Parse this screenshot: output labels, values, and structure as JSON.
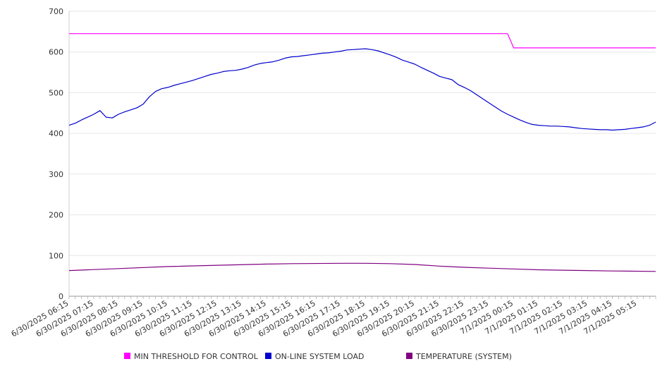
{
  "chart_data": {
    "type": "line",
    "title": "",
    "xlabel": "",
    "ylabel": "",
    "ylim": [
      0,
      700
    ],
    "yticks": [
      0,
      100,
      200,
      300,
      400,
      500,
      600,
      700
    ],
    "grid": true,
    "legend_position": "bottom",
    "x_tick_labels": [
      "6/30/2025 06:15",
      "6/30/2025 07:15",
      "6/30/2025 08:15",
      "6/30/2025 09:15",
      "6/30/2025 10:15",
      "6/30/2025 11:15",
      "6/30/2025 12:15",
      "6/30/2025 13:15",
      "6/30/2025 14:15",
      "6/30/2025 15:15",
      "6/30/2025 16:15",
      "6/30/2025 17:15",
      "6/30/2025 18:15",
      "6/30/2025 19:15",
      "6/30/2025 20:15",
      "6/30/2025 21:15",
      "6/30/2025 22:15",
      "6/30/2025 23:15",
      "7/1/2025 00:15",
      "7/1/2025 01:15",
      "7/1/2025 02:15",
      "7/1/2025 03:15",
      "7/1/2025 04:15",
      "7/1/2025 05:15"
    ],
    "x_end": "7/1/2025 06:00",
    "series": [
      {
        "name": "MIN THRESHOLD FOR CONTROL",
        "color": "#ff00ff",
        "points": [
          [
            "6/30/2025 06:15",
            645
          ],
          [
            "7/1/2025 00:00",
            645
          ],
          [
            "7/1/2025 00:15",
            610
          ],
          [
            "7/1/2025 06:00",
            610
          ]
        ]
      },
      {
        "name": "ON-LINE SYSTEM LOAD",
        "color": "#0000cc",
        "points": [
          [
            "6/30/2025 06:15",
            420
          ],
          [
            "6/30/2025 06:30",
            425
          ],
          [
            "6/30/2025 06:45",
            433
          ],
          [
            "6/30/2025 07:00",
            440
          ],
          [
            "6/30/2025 07:15",
            447
          ],
          [
            "6/30/2025 07:30",
            456
          ],
          [
            "6/30/2025 07:45",
            440
          ],
          [
            "6/30/2025 08:00",
            438
          ],
          [
            "6/30/2025 08:15",
            447
          ],
          [
            "6/30/2025 08:30",
            453
          ],
          [
            "6/30/2025 08:45",
            458
          ],
          [
            "6/30/2025 09:00",
            463
          ],
          [
            "6/30/2025 09:15",
            472
          ],
          [
            "6/30/2025 09:30",
            490
          ],
          [
            "6/30/2025 09:45",
            503
          ],
          [
            "6/30/2025 10:00",
            510
          ],
          [
            "6/30/2025 10:15",
            513
          ],
          [
            "6/30/2025 10:30",
            518
          ],
          [
            "6/30/2025 10:45",
            522
          ],
          [
            "6/30/2025 11:00",
            526
          ],
          [
            "6/30/2025 11:15",
            530
          ],
          [
            "6/30/2025 11:30",
            535
          ],
          [
            "6/30/2025 11:45",
            540
          ],
          [
            "6/30/2025 12:00",
            545
          ],
          [
            "6/30/2025 12:15",
            548
          ],
          [
            "6/30/2025 12:30",
            552
          ],
          [
            "6/30/2025 12:45",
            554
          ],
          [
            "6/30/2025 13:00",
            555
          ],
          [
            "6/30/2025 13:15",
            558
          ],
          [
            "6/30/2025 13:30",
            562
          ],
          [
            "6/30/2025 13:45",
            568
          ],
          [
            "6/30/2025 14:00",
            572
          ],
          [
            "6/30/2025 14:15",
            574
          ],
          [
            "6/30/2025 14:30",
            576
          ],
          [
            "6/30/2025 14:45",
            580
          ],
          [
            "6/30/2025 15:00",
            585
          ],
          [
            "6/30/2025 15:15",
            588
          ],
          [
            "6/30/2025 15:30",
            589
          ],
          [
            "6/30/2025 15:45",
            591
          ],
          [
            "6/30/2025 16:00",
            593
          ],
          [
            "6/30/2025 16:15",
            595
          ],
          [
            "6/30/2025 16:30",
            597
          ],
          [
            "6/30/2025 16:45",
            598
          ],
          [
            "6/30/2025 17:00",
            600
          ],
          [
            "6/30/2025 17:15",
            602
          ],
          [
            "6/30/2025 17:30",
            605
          ],
          [
            "6/30/2025 17:45",
            606
          ],
          [
            "6/30/2025 18:00",
            607
          ],
          [
            "6/30/2025 18:15",
            608
          ],
          [
            "6/30/2025 18:30",
            606
          ],
          [
            "6/30/2025 18:45",
            603
          ],
          [
            "6/30/2025 19:00",
            598
          ],
          [
            "6/30/2025 19:15",
            593
          ],
          [
            "6/30/2025 19:30",
            587
          ],
          [
            "6/30/2025 19:45",
            580
          ],
          [
            "6/30/2025 20:00",
            575
          ],
          [
            "6/30/2025 20:15",
            570
          ],
          [
            "6/30/2025 20:30",
            562
          ],
          [
            "6/30/2025 20:45",
            555
          ],
          [
            "6/30/2025 21:00",
            548
          ],
          [
            "6/30/2025 21:15",
            540
          ],
          [
            "6/30/2025 21:30",
            536
          ],
          [
            "6/30/2025 21:45",
            532
          ],
          [
            "6/30/2025 22:00",
            520
          ],
          [
            "6/30/2025 22:15",
            513
          ],
          [
            "6/30/2025 22:30",
            505
          ],
          [
            "6/30/2025 22:45",
            495
          ],
          [
            "6/30/2025 23:00",
            485
          ],
          [
            "6/30/2025 23:15",
            475
          ],
          [
            "6/30/2025 23:30",
            465
          ],
          [
            "6/30/2025 23:45",
            455
          ],
          [
            "7/1/2025 00:00",
            447
          ],
          [
            "7/1/2025 00:15",
            440
          ],
          [
            "7/1/2025 00:30",
            433
          ],
          [
            "7/1/2025 00:45",
            427
          ],
          [
            "7/1/2025 01:00",
            422
          ],
          [
            "7/1/2025 01:15",
            420
          ],
          [
            "7/1/2025 01:30",
            419
          ],
          [
            "7/1/2025 01:45",
            418
          ],
          [
            "7/1/2025 02:00",
            418
          ],
          [
            "7/1/2025 02:15",
            417
          ],
          [
            "7/1/2025 02:30",
            416
          ],
          [
            "7/1/2025 02:45",
            414
          ],
          [
            "7/1/2025 03:00",
            412
          ],
          [
            "7/1/2025 03:15",
            411
          ],
          [
            "7/1/2025 03:30",
            410
          ],
          [
            "7/1/2025 03:45",
            409
          ],
          [
            "7/1/2025 04:00",
            409
          ],
          [
            "7/1/2025 04:15",
            408
          ],
          [
            "7/1/2025 04:30",
            409
          ],
          [
            "7/1/2025 04:45",
            410
          ],
          [
            "7/1/2025 05:00",
            412
          ],
          [
            "7/1/2025 05:15",
            414
          ],
          [
            "7/1/2025 05:30",
            416
          ],
          [
            "7/1/2025 05:45",
            420
          ],
          [
            "7/1/2025 06:00",
            428
          ]
        ]
      },
      {
        "name": "TEMPERATURE (SYSTEM)",
        "color": "#800080",
        "points": [
          [
            "6/30/2025 06:15",
            63
          ],
          [
            "6/30/2025 08:15",
            68
          ],
          [
            "6/30/2025 10:15",
            73
          ],
          [
            "6/30/2025 12:15",
            76
          ],
          [
            "6/30/2025 14:15",
            79
          ],
          [
            "6/30/2025 15:15",
            80
          ],
          [
            "6/30/2025 17:15",
            81
          ],
          [
            "6/30/2025 18:15",
            81
          ],
          [
            "6/30/2025 19:15",
            80
          ],
          [
            "6/30/2025 20:15",
            78
          ],
          [
            "6/30/2025 21:15",
            74
          ],
          [
            "6/30/2025 22:15",
            71
          ],
          [
            "6/30/2025 23:15",
            69
          ],
          [
            "7/1/2025 00:15",
            67
          ],
          [
            "7/1/2025 01:15",
            65
          ],
          [
            "7/1/2025 02:15",
            64
          ],
          [
            "7/1/2025 03:15",
            63
          ],
          [
            "7/1/2025 04:15",
            62
          ],
          [
            "7/1/2025 06:00",
            61
          ]
        ]
      }
    ]
  }
}
